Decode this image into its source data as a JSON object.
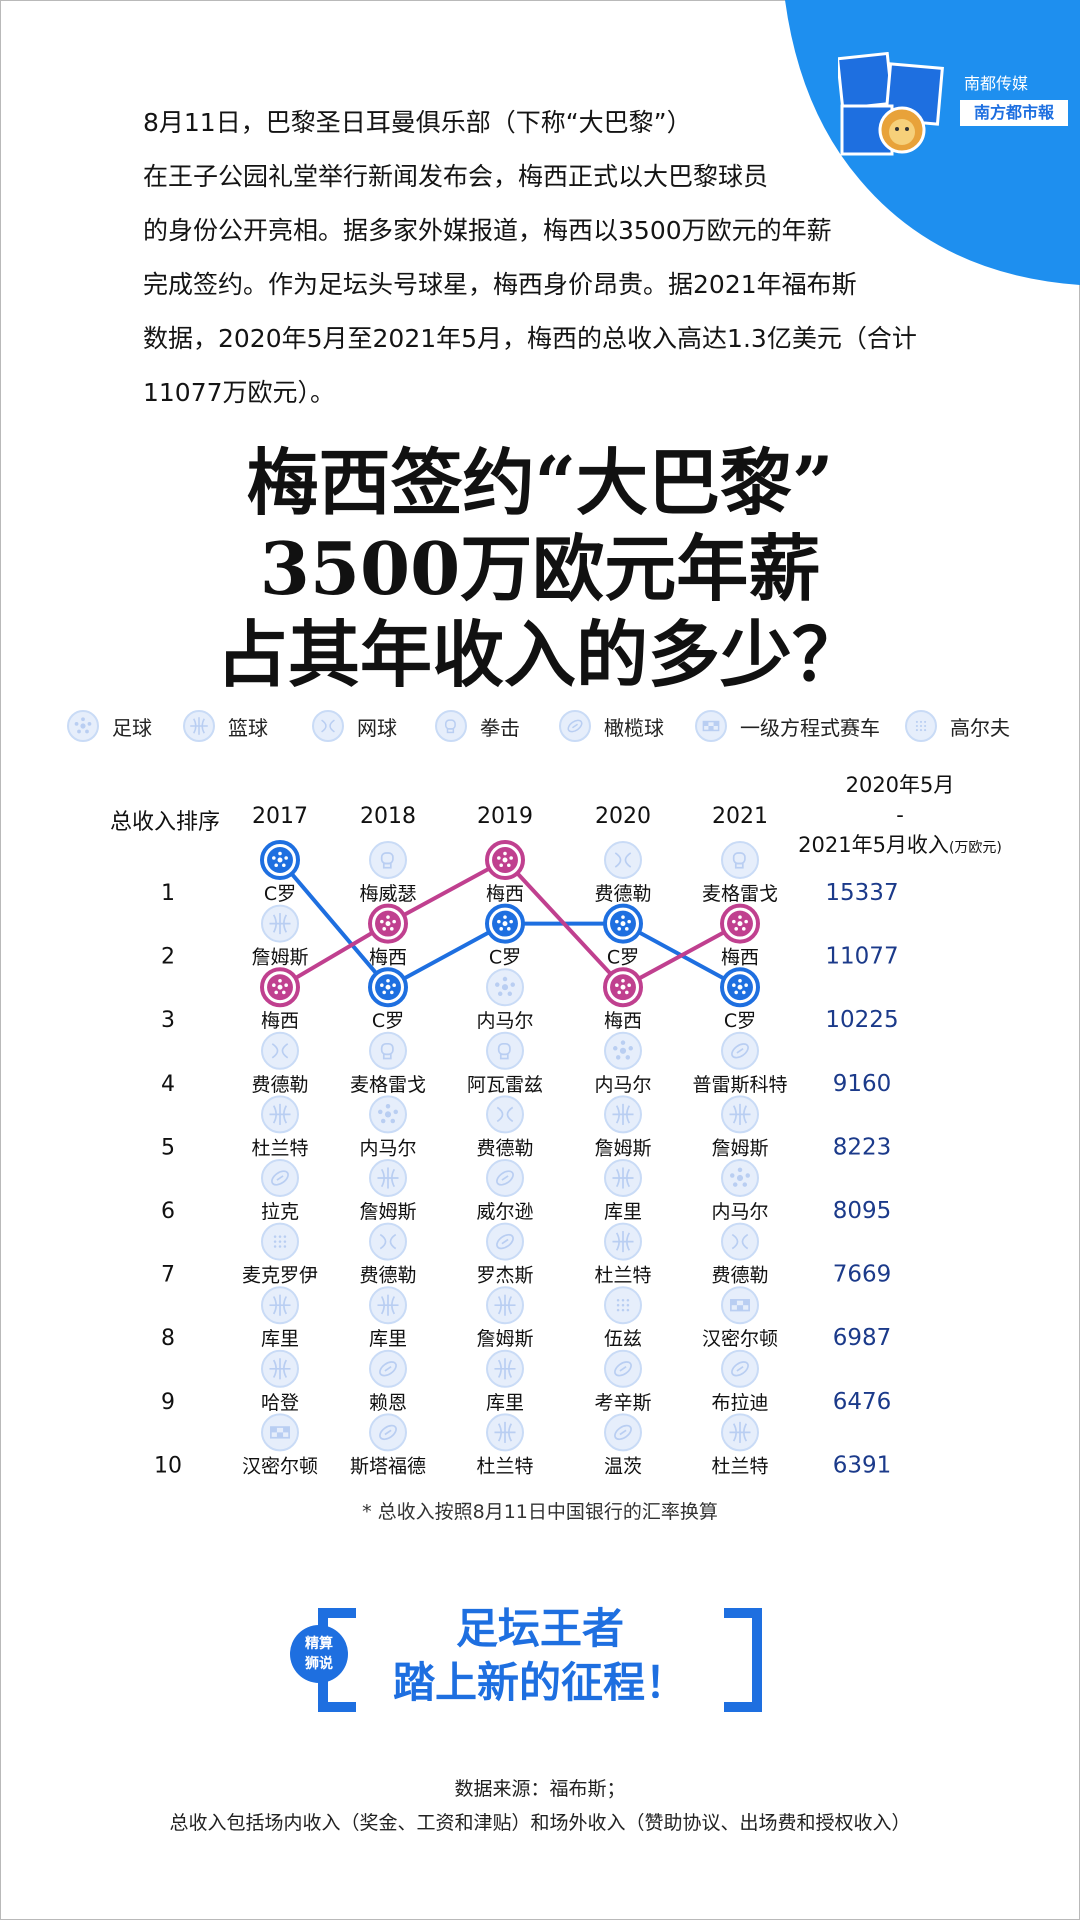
{
  "intro_lines": [
    "8月11日，巴黎圣日耳曼俱乐部（下称“大巴黎”）",
    "在王子公园礼堂举行新闻发布会，梅西正式以大巴黎球员",
    "的身份公开亮相。据多家外媒报道，梅西以3500万欧元的年薪",
    "完成签约。作为足坛头号球星，梅西身价昂贵。据2021年福布斯",
    "数据，2020年5月至2021年5月，梅西的总收入高达1.3亿美元（合计",
    "11077万欧元）。"
  ],
  "headline": [
    "梅西签约“大巴黎”",
    "3500万欧元年薪",
    "占其年收入的多少？"
  ],
  "legend": [
    {
      "label": "足球",
      "icon": "soccer-icon"
    },
    {
      "label": "篮球",
      "icon": "basketball-icon"
    },
    {
      "label": "网球",
      "icon": "tennis-icon"
    },
    {
      "label": "拳击",
      "icon": "boxing-icon"
    },
    {
      "label": "橄榄球",
      "icon": "football-icon"
    },
    {
      "label": "一级方程式赛车",
      "icon": "f1-icon"
    },
    {
      "label": "高尔夫",
      "icon": "golf-icon"
    }
  ],
  "chart_data": {
    "type": "table",
    "rank_header": "总收入排序",
    "years": [
      "2017",
      "2018",
      "2019",
      "2020",
      "2021"
    ],
    "income_header": [
      "2020年5月",
      "-",
      "2021年5月收入",
      "(万欧元)"
    ],
    "ranks": [
      1,
      2,
      3,
      4,
      5,
      6,
      7,
      8,
      9,
      10
    ],
    "names": [
      [
        "C罗",
        "梅威瑟",
        "梅西",
        "费德勒",
        "麦格雷戈"
      ],
      [
        "詹姆斯",
        "梅西",
        "C罗",
        "C罗",
        "梅西"
      ],
      [
        "梅西",
        "C罗",
        "内马尔",
        "梅西",
        "C罗"
      ],
      [
        "费德勒",
        "麦格雷戈",
        "阿瓦雷兹",
        "内马尔",
        "普雷斯科特"
      ],
      [
        "杜兰特",
        "内马尔",
        "费德勒",
        "詹姆斯",
        "詹姆斯"
      ],
      [
        "拉克",
        "詹姆斯",
        "威尔逊",
        "库里",
        "内马尔"
      ],
      [
        "麦克罗伊",
        "费德勒",
        "罗杰斯",
        "杜兰特",
        "费德勒"
      ],
      [
        "库里",
        "库里",
        "詹姆斯",
        "伍兹",
        "汉密尔顿"
      ],
      [
        "哈登",
        "赖恩",
        "库里",
        "考辛斯",
        "布拉迪"
      ],
      [
        "汉密尔顿",
        "斯塔福德",
        "杜兰特",
        "温茨",
        "杜兰特"
      ]
    ],
    "sports": [
      [
        "soccer",
        "boxing",
        "soccer",
        "tennis",
        "boxing"
      ],
      [
        "basketball",
        "soccer",
        "soccer",
        "soccer",
        "soccer"
      ],
      [
        "soccer",
        "soccer",
        "soccer",
        "soccer",
        "soccer"
      ],
      [
        "tennis",
        "boxing",
        "boxing",
        "soccer",
        "football"
      ],
      [
        "basketball",
        "soccer",
        "tennis",
        "basketball",
        "basketball"
      ],
      [
        "football",
        "basketball",
        "football",
        "basketball",
        "soccer"
      ],
      [
        "golf",
        "tennis",
        "football",
        "basketball",
        "tennis"
      ],
      [
        "basketball",
        "basketball",
        "basketball",
        "golf",
        "f1"
      ],
      [
        "basketball",
        "football",
        "basketball",
        "football",
        "football"
      ],
      [
        "f1",
        "football",
        "basketball",
        "football",
        "basketball"
      ]
    ],
    "income_2021": [
      15337,
      11077,
      10225,
      9160,
      8223,
      8095,
      7669,
      6987,
      6476,
      6391
    ],
    "highlight_series": [
      {
        "name": "C罗",
        "ranks": [
          1,
          3,
          2,
          2,
          3
        ],
        "color": "#1e6fe0"
      },
      {
        "name": "梅西",
        "ranks": [
          3,
          2,
          1,
          3,
          2
        ],
        "color": "#c0408f"
      }
    ]
  },
  "note": "* 总收入按照8月11日中国银行的汇率换算",
  "badge": [
    "精算",
    "狮说"
  ],
  "slogan": [
    "足坛王者",
    "踏上新的征程！"
  ],
  "source_lines": [
    "数据来源：福布斯；",
    "总收入包括场内收入（奖金、工资和津贴）和场外收入（赞助协议、出场费和授权收入）"
  ],
  "branding": {
    "media": "南都传媒",
    "paper": "南方都市報",
    "logo_text": "精算狮"
  },
  "colors": {
    "accent": "#1e6fe0",
    "messi": "#c0408f",
    "icon_light": "#c9dbf6"
  }
}
